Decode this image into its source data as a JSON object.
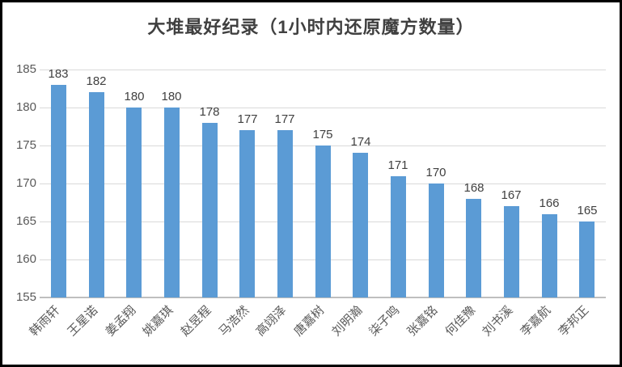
{
  "chart_data": {
    "type": "bar",
    "title": "大堆最好纪录（1小时内还原魔方数量）",
    "categories": [
      "韩雨轩",
      "王星诺",
      "姜孟翔",
      "姚嘉琪",
      "赵昱程",
      "马浩然",
      "高翊泽",
      "唐嘉树",
      "刘明瀚",
      "柒子鸣",
      "张嘉铭",
      "何佳豫",
      "刘书溪",
      "李嘉航",
      "李邦正"
    ],
    "values": [
      183,
      182,
      180,
      180,
      178,
      177,
      177,
      175,
      174,
      171,
      170,
      168,
      167,
      166,
      165
    ],
    "ylabel": "",
    "xlabel": "",
    "ylim": [
      155,
      185
    ],
    "yticks": [
      155,
      160,
      165,
      170,
      175,
      180,
      185
    ],
    "grid": true,
    "legend_position": "none",
    "bar_color": "#5b9bd5",
    "gridline_color": "#d9d9d9",
    "axis_line_color": "#bfbfbf",
    "title_color": "#404040",
    "label_color": "#595959",
    "frame_border_color": "#000000"
  }
}
